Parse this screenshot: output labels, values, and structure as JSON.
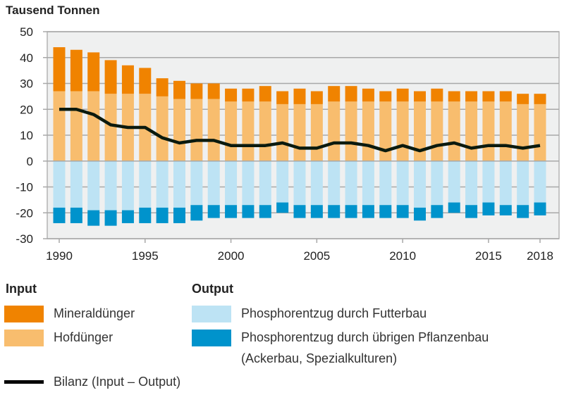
{
  "chart_data": {
    "type": "bar",
    "stacked": true,
    "unit_label": "Tausend Tonnen",
    "ylim": [
      -30,
      50
    ],
    "yticks": [
      50,
      40,
      30,
      20,
      10,
      0,
      -10,
      -20,
      -30
    ],
    "xtick_labels": [
      "1990",
      "1995",
      "2000",
      "2005",
      "2010",
      "2015",
      "2018"
    ],
    "grid": true,
    "background": "#eff0f0",
    "categories": [
      1990,
      1991,
      1992,
      1993,
      1994,
      1995,
      1996,
      1997,
      1998,
      1999,
      2000,
      2001,
      2002,
      2003,
      2004,
      2005,
      2006,
      2007,
      2008,
      2009,
      2010,
      2011,
      2012,
      2013,
      2014,
      2015,
      2016,
      2017,
      2018
    ],
    "series": [
      {
        "name": "Hofdünger",
        "group": "Input",
        "color": "#f8bd6e",
        "values": [
          27,
          27,
          27,
          26,
          26,
          26,
          25,
          24,
          24,
          24,
          23,
          23,
          23,
          22,
          22,
          22,
          23,
          23,
          23,
          23,
          23,
          23,
          23,
          23,
          23,
          23,
          23,
          22,
          22
        ]
      },
      {
        "name": "Mineraldünger",
        "group": "Input",
        "color": "#f08300",
        "values": [
          17,
          16,
          15,
          13,
          11,
          10,
          7,
          7,
          6,
          6,
          5,
          5,
          6,
          5,
          6,
          5,
          6,
          6,
          5,
          4,
          5,
          4,
          5,
          4,
          4,
          4,
          4,
          4,
          4
        ]
      },
      {
        "name": "Phosphorentzug durch Futterbau",
        "group": "Output",
        "color": "#bde3f4",
        "values": [
          -18,
          -18,
          -19,
          -19,
          -19,
          -18,
          -18,
          -18,
          -17,
          -17,
          -17,
          -17,
          -17,
          -16,
          -17,
          -17,
          -17,
          -17,
          -17,
          -17,
          -17,
          -18,
          -17,
          -16,
          -17,
          -16,
          -17,
          -17,
          -16
        ]
      },
      {
        "name": "Phosphorentzug durch übrigen Pflanzenbau (Ackerbau, Spezialkulturen)",
        "group": "Output",
        "color": "#0093cc",
        "values": [
          -6,
          -6,
          -6,
          -6,
          -5,
          -6,
          -6,
          -6,
          -6,
          -5,
          -5,
          -5,
          -5,
          -4,
          -5,
          -5,
          -5,
          -5,
          -5,
          -5,
          -5,
          -5,
          -5,
          -4,
          -5,
          -5,
          -4,
          -5,
          -5
        ]
      }
    ],
    "line": {
      "name": "Bilanz (Input – Output)",
      "color": "#0b1a0e",
      "values": [
        20,
        20,
        18,
        14,
        13,
        13,
        9,
        7,
        8,
        8,
        6,
        6,
        6,
        7,
        5,
        5,
        7,
        7,
        6,
        4,
        6,
        4,
        6,
        7,
        5,
        6,
        6,
        5,
        6
      ]
    }
  },
  "legend": {
    "input_heading": "Input",
    "output_heading": "Output",
    "mineral": "Mineraldünger",
    "hof": "Hofdünger",
    "futter": "Phosphorentzug durch Futterbau",
    "uebrig_line1": "Phosphorentzug durch übrigen Pflanzenbau",
    "uebrig_line2": "(Ackerbau, Spezialkulturen)",
    "bilanz": "Bilanz (Input – Output)"
  }
}
